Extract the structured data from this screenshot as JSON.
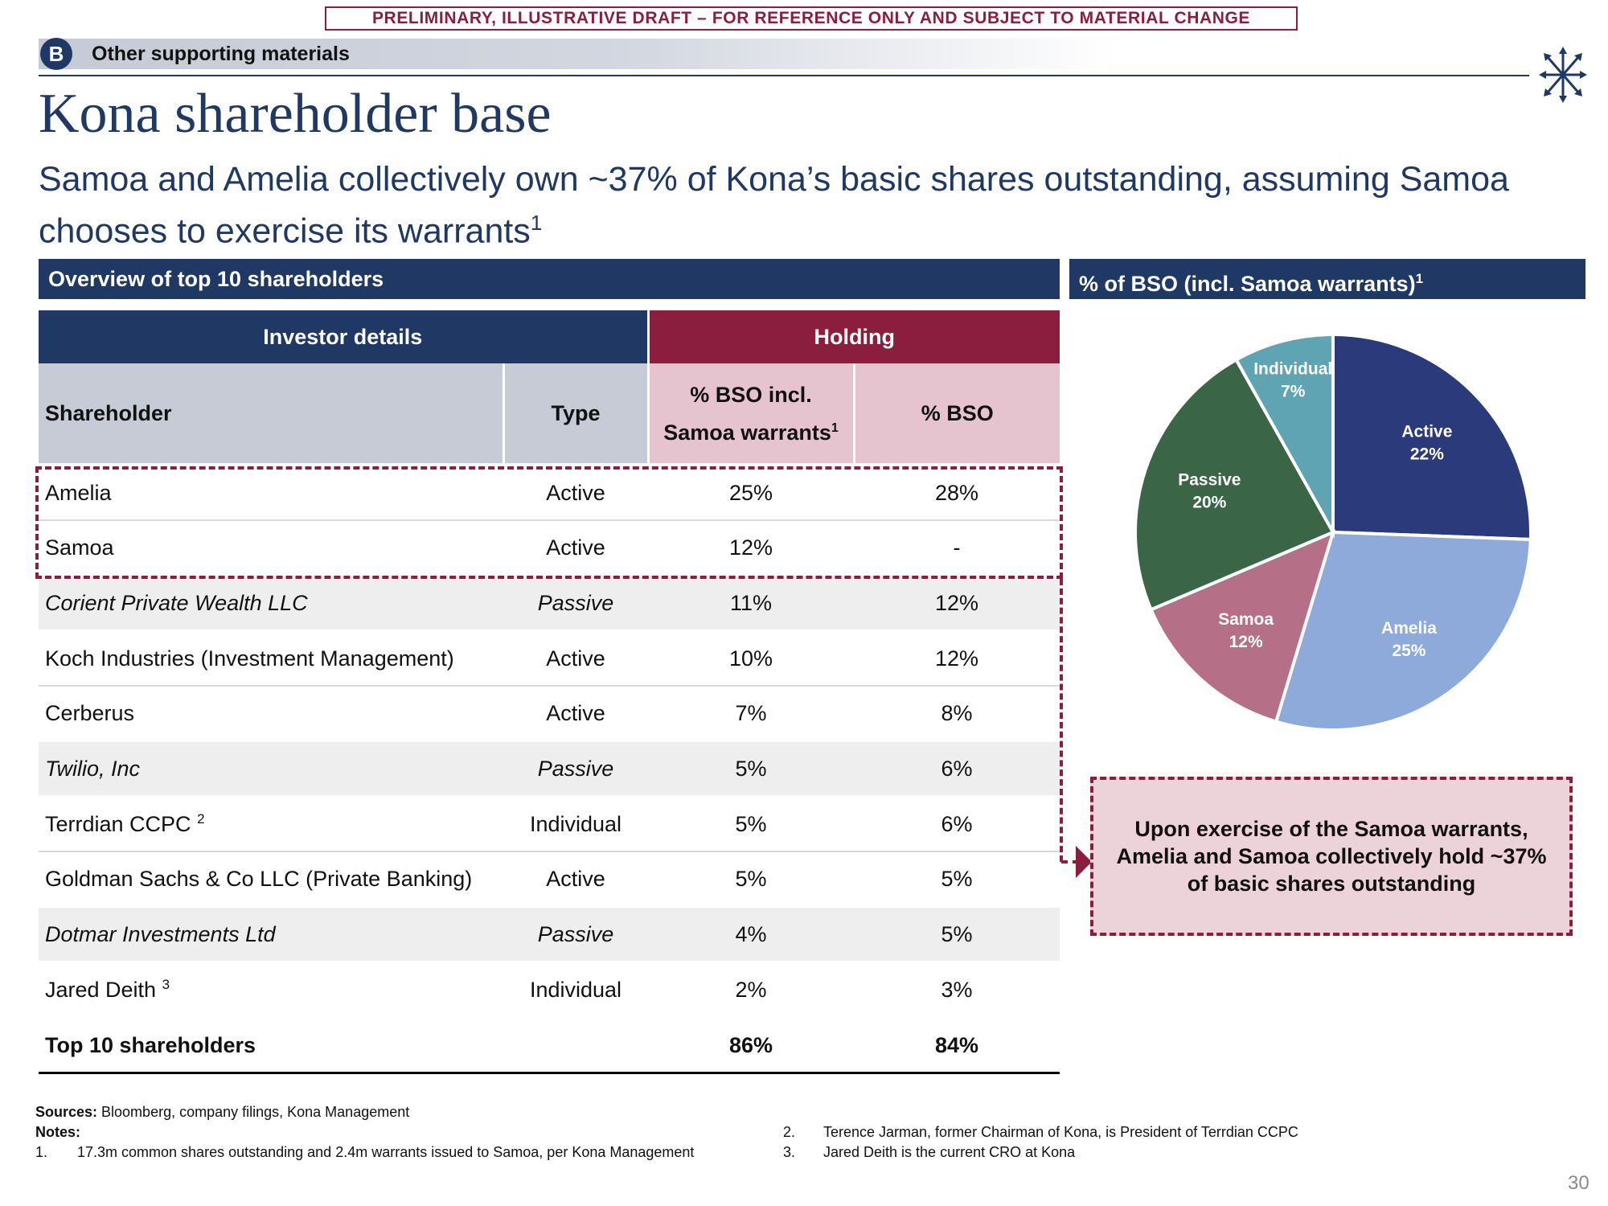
{
  "banner": "PRELIMINARY, ILLUSTRATIVE DRAFT – FOR REFERENCE ONLY AND SUBJECT TO MATERIAL CHANGE",
  "section": {
    "badge": "B",
    "label": "Other supporting materials"
  },
  "title": "Kona shareholder base",
  "subtitle": {
    "text": "Samoa and Amelia collectively own ~37% of Kona’s basic shares outstanding, assuming Samoa chooses to exercise its warrants",
    "sup": "1"
  },
  "left_panel": {
    "header": "Overview of top 10 shareholders"
  },
  "right_panel": {
    "header": "% of BSO (incl. Samoa warrants)",
    "sup": "1"
  },
  "table": {
    "group_headers": {
      "investor": "Investor details",
      "holding": "Holding"
    },
    "columns": {
      "shareholder": "Shareholder",
      "type": "Type",
      "bso_incl_line1": "% BSO incl.",
      "bso_incl_line2": "Samoa warrants",
      "bso_incl_sup": "1",
      "bso": "% BSO"
    },
    "rows": [
      {
        "name": "Amelia",
        "sup": "",
        "type": "Active",
        "bso_incl": "25%",
        "bso": "28%"
      },
      {
        "name": "Samoa",
        "sup": "",
        "type": "Active",
        "bso_incl": "12%",
        "bso": "-"
      },
      {
        "name": "Corient Private Wealth LLC",
        "sup": "",
        "type": "Passive",
        "bso_incl": "11%",
        "bso": "12%"
      },
      {
        "name": "Koch Industries (Investment Management)",
        "sup": "",
        "type": "Active",
        "bso_incl": "10%",
        "bso": "12%"
      },
      {
        "name": "Cerberus",
        "sup": "",
        "type": "Active",
        "bso_incl": "7%",
        "bso": "8%"
      },
      {
        "name": "Twilio, Inc",
        "sup": "",
        "type": "Passive",
        "bso_incl": "5%",
        "bso": "6%"
      },
      {
        "name": "Terrdian CCPC",
        "sup": "2",
        "type": "Individual",
        "bso_incl": "5%",
        "bso": "6%"
      },
      {
        "name": "Goldman Sachs & Co LLC (Private Banking)",
        "sup": "",
        "type": "Active",
        "bso_incl": "5%",
        "bso": "5%"
      },
      {
        "name": "Dotmar Investments Ltd",
        "sup": "",
        "type": "Passive",
        "bso_incl": "4%",
        "bso": "5%"
      },
      {
        "name": "Jared Deith",
        "sup": "3",
        "type": "Individual",
        "bso_incl": "2%",
        "bso": "3%"
      }
    ],
    "total": {
      "label": "Top 10 shareholders",
      "bso_incl": "86%",
      "bso": "84%"
    }
  },
  "chart_data": {
    "type": "pie",
    "slices": [
      {
        "label": "Active",
        "value": 22,
        "display": "22%",
        "color": "#2b3a7a"
      },
      {
        "label": "Amelia",
        "value": 25,
        "display": "25%",
        "color": "#8eaadb"
      },
      {
        "label": "Samoa",
        "value": 12,
        "display": "12%",
        "color": "#b56f86"
      },
      {
        "label": "Passive",
        "value": 20,
        "display": "20%",
        "color": "#3a6647"
      },
      {
        "label": "Individual",
        "value": 7,
        "display": "7%",
        "color": "#5fa4b3"
      }
    ]
  },
  "callout": "Upon exercise of the Samoa warrants, Amelia and Samoa collectively hold ~37% of basic shares outstanding",
  "footer": {
    "sources_label": "Sources:",
    "sources_text": " Bloomberg, company filings, Kona Management",
    "notes_label": "Notes:",
    "notes": [
      {
        "num": "1.",
        "text": "17.3m common shares outstanding and 2.4m warrants issued to Samoa, per Kona Management"
      },
      {
        "num": "2.",
        "text": "Terence Jarman, former Chairman of Kona, is President of Terrdian CCPC"
      },
      {
        "num": "3.",
        "text": "Jared Deith is the current CRO at Kona"
      }
    ]
  },
  "page_number": "30"
}
